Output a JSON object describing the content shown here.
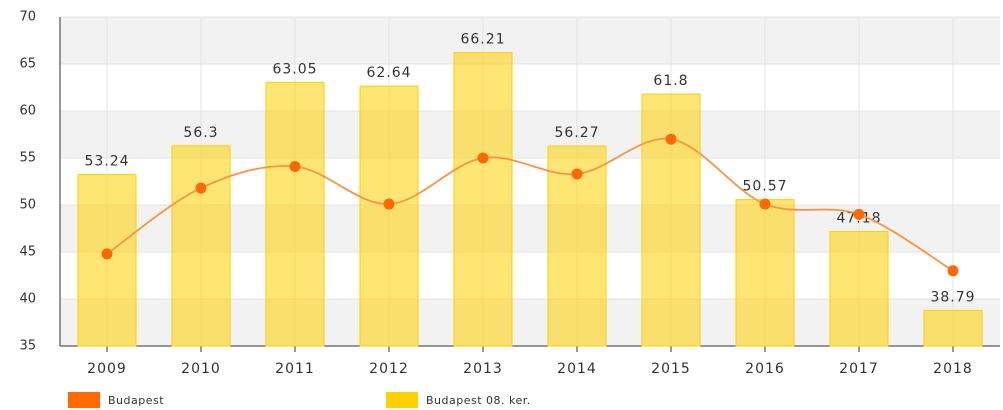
{
  "chart_data": {
    "type": "bar",
    "categories": [
      "2009",
      "2010",
      "2011",
      "2012",
      "2013",
      "2014",
      "2015",
      "2016",
      "2017",
      "2018"
    ],
    "series": [
      {
        "name": "Budapest",
        "type": "line",
        "color": "#ff6a00",
        "values": [
          44.8,
          51.8,
          54.1,
          50.1,
          55.0,
          53.3,
          57.0,
          50.1,
          49.0,
          43.0
        ]
      },
      {
        "name": "Budapest 08. ker.",
        "type": "bar",
        "color": "#ffd000",
        "values": [
          53.24,
          56.3,
          63.05,
          62.64,
          66.21,
          56.27,
          61.8,
          50.57,
          47.18,
          38.79
        ]
      }
    ],
    "ylim": [
      35,
      70
    ],
    "yticks": [
      35,
      40,
      45,
      50,
      55,
      60,
      65,
      70
    ],
    "grid": true
  }
}
